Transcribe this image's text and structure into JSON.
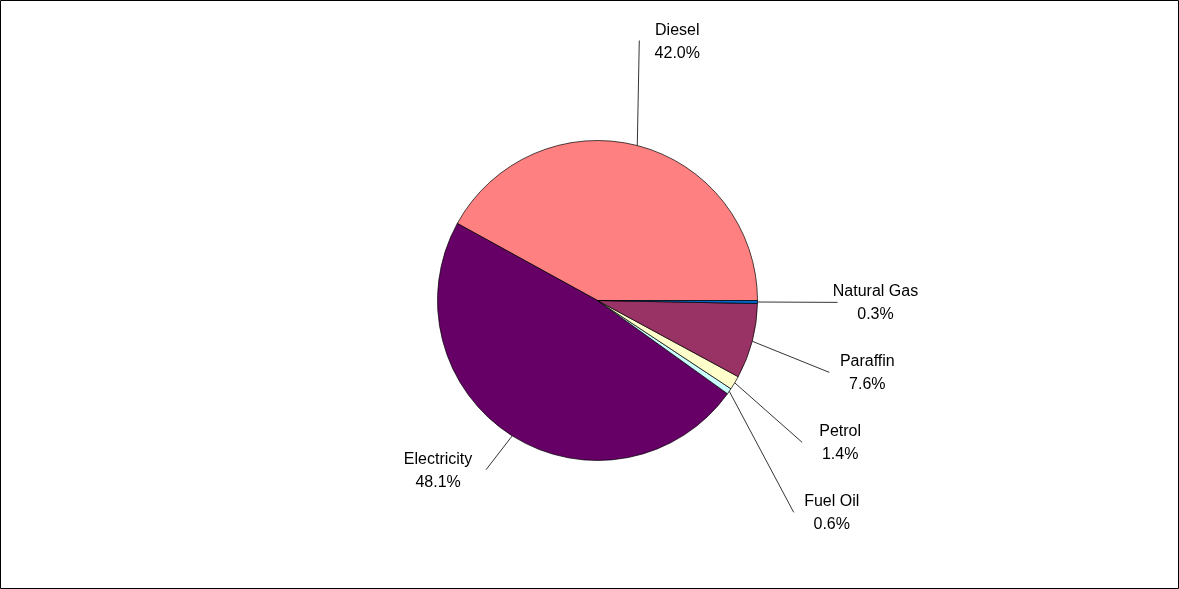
{
  "chart_data": {
    "type": "pie",
    "categories": [
      "Diesel",
      "Electricity",
      "Fuel Oil",
      "Petrol",
      "Paraffin",
      "Natural Gas"
    ],
    "values": [
      42.0,
      48.1,
      0.6,
      1.4,
      7.6,
      0.3
    ],
    "value_labels": [
      "42.0%",
      "48.1%",
      "0.6%",
      "1.4%",
      "7.6%",
      "0.3%"
    ],
    "colors": [
      "#ff8080",
      "#660066",
      "#ccffff",
      "#ffffcc",
      "#993366",
      "#0066cc"
    ]
  }
}
